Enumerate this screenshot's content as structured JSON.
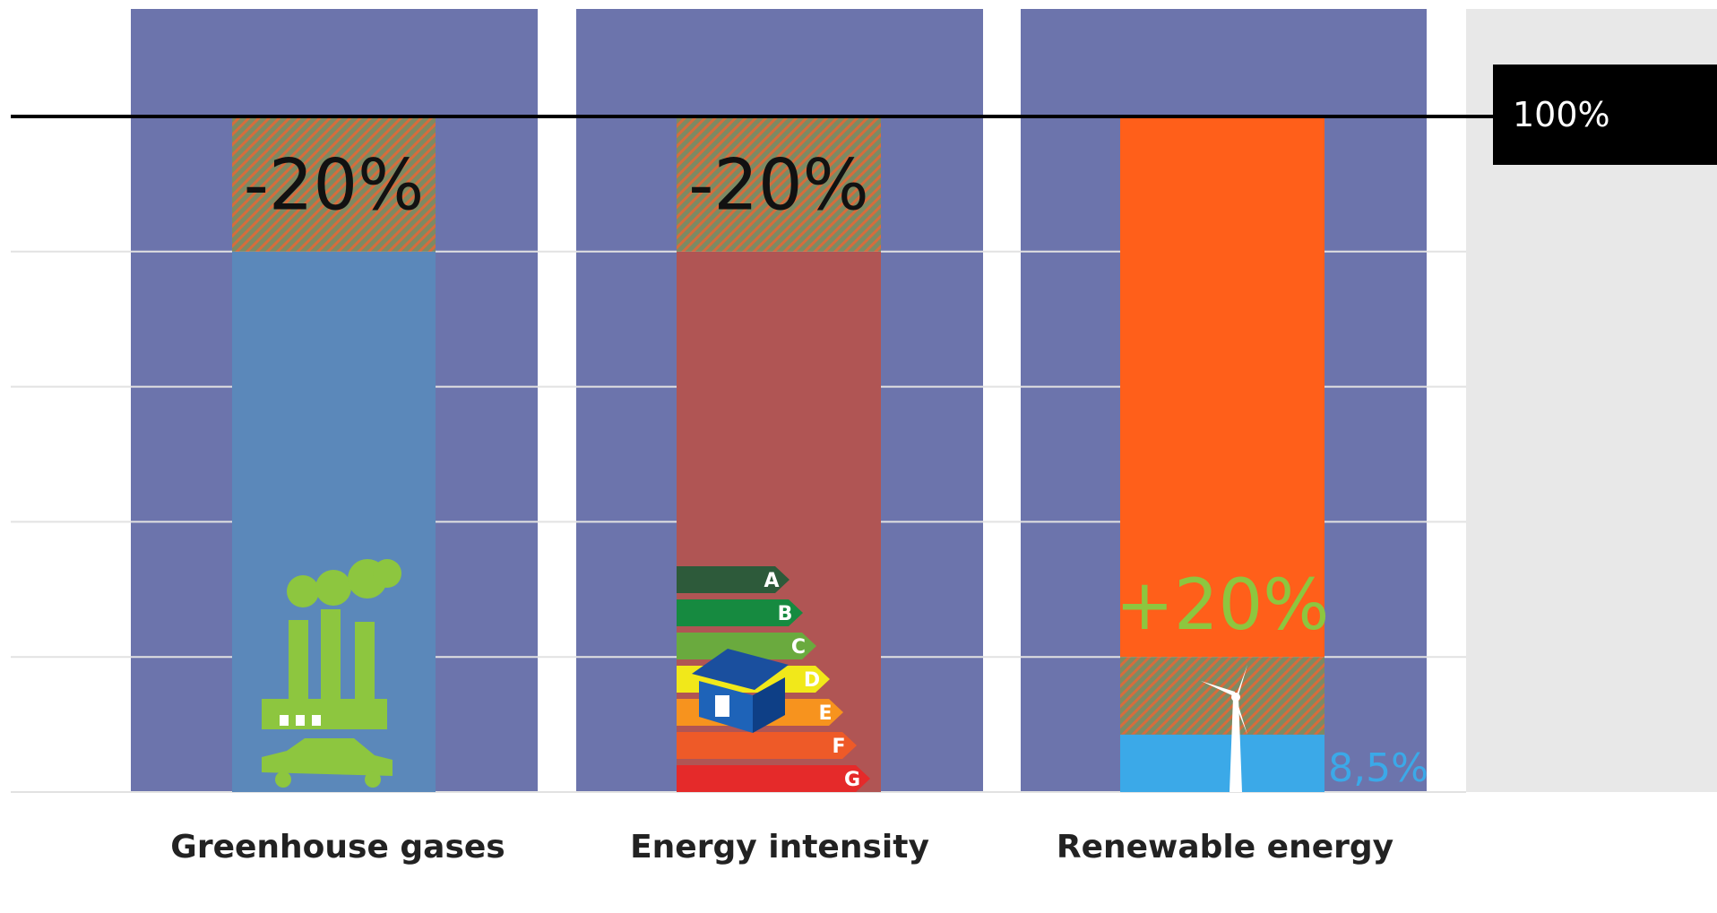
{
  "chart_data": {
    "type": "bar",
    "categories": [
      "Greenhouse gases",
      "Energy intensity",
      "Renewable energy"
    ],
    "reference_line": {
      "value": 100,
      "label": "100%"
    },
    "bars": [
      {
        "category": "Greenhouse gases",
        "base_value": 80,
        "target_change": -20,
        "change_label": "-20%",
        "fill_color": "#5b88ba",
        "icon": "factory-and-car-icon"
      },
      {
        "category": "Energy intensity",
        "base_value": 80,
        "target_change": -20,
        "change_label": "-20%",
        "fill_color": "#b05554",
        "icon": "energy-rating-house-icon",
        "rating_classes": [
          "A",
          "B",
          "C",
          "D",
          "E",
          "F",
          "G"
        ]
      },
      {
        "category": "Renewable energy",
        "current_value": 8.5,
        "current_label": "8,5%",
        "target_change": 20,
        "change_label": "+20%",
        "fill_color": "#ff5f1a",
        "current_color": "#3ba9e8",
        "icon": "wind-turbine-icon"
      }
    ],
    "ylim": [
      0,
      100
    ],
    "grid": true
  },
  "colors": {
    "panel": "#6c74ac",
    "hatch": "#c8744b",
    "change_label_dark": "#111111",
    "change_label_green": "#8dc63f",
    "current_label": "#3ba9e8",
    "icon_green": "#8dc63f",
    "rating": [
      "#2d5a3a",
      "#168a40",
      "#6aaa3e",
      "#f1e81a",
      "#f7931e",
      "#ee5a28",
      "#e52a2a"
    ]
  }
}
